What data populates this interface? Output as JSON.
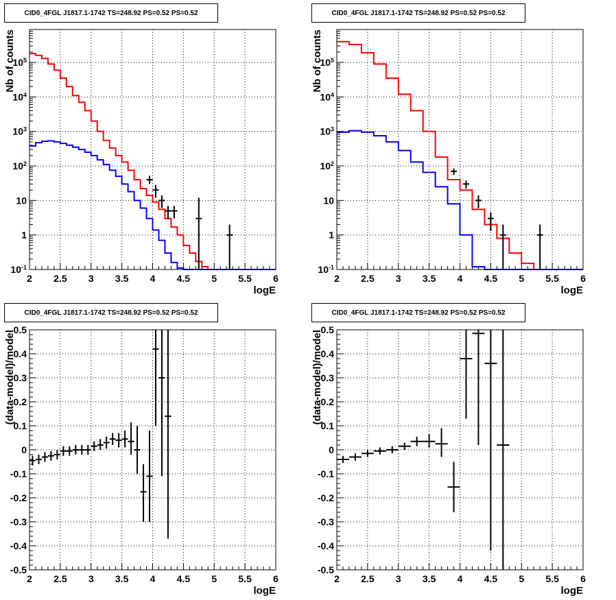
{
  "chart_data": [
    {
      "type": "step",
      "title": "CID0_4FGL J1817.1-1742 TS=248.92 PS=0.52 PS=0.52",
      "xlabel": "logE",
      "ylabel": "Nb of counts",
      "xlim": [
        2,
        6
      ],
      "ylim": [
        0.1,
        900000
      ],
      "yscale": "log",
      "grid": true,
      "xticks": [
        "2",
        "2.5",
        "3",
        "3.5",
        "4",
        "4.5",
        "5",
        "5.5",
        "6"
      ],
      "yticks": [
        "10^-1",
        "1",
        "10",
        "10^2",
        "10^3",
        "10^4",
        "10^5"
      ],
      "series": [
        {
          "color": "#ff0000",
          "bin_edges": [
            2,
            2.1,
            2.2,
            2.3,
            2.4,
            2.5,
            2.6,
            2.7,
            2.8,
            2.9,
            3.0,
            3.1,
            3.2,
            3.3,
            3.4,
            3.5,
            3.6,
            3.7,
            3.8,
            3.9,
            4.0,
            4.1,
            4.2,
            4.3,
            4.4,
            4.5,
            4.6,
            4.7,
            4.8,
            4.9,
            5.0,
            6.0
          ],
          "values": [
            180000,
            160000,
            130000,
            90000,
            60000,
            35000,
            20000,
            11000,
            7000,
            4000,
            2000,
            1000,
            550,
            330,
            200,
            130,
            75,
            40,
            22,
            14,
            9,
            5.5,
            3,
            1.7,
            1,
            0.5,
            0.3,
            0.17,
            0.12,
            0.1,
            0.1
          ]
        },
        {
          "color": "#0000ff",
          "bin_edges": [
            2,
            2.1,
            2.2,
            2.3,
            2.4,
            2.5,
            2.6,
            2.7,
            2.8,
            2.9,
            3.0,
            3.1,
            3.2,
            3.3,
            3.4,
            3.5,
            3.6,
            3.7,
            3.8,
            3.9,
            4.0,
            4.1,
            4.2,
            4.3,
            4.4,
            4.5,
            6.0
          ],
          "values": [
            380,
            470,
            520,
            530,
            500,
            450,
            400,
            350,
            300,
            250,
            200,
            150,
            110,
            75,
            50,
            30,
            18,
            10,
            6,
            3,
            1.4,
            0.7,
            0.3,
            0.16,
            0.11,
            0.1
          ]
        }
      ],
      "points": {
        "x": [
          3.95,
          4.05,
          4.15,
          4.25,
          4.35,
          4.75,
          5.25
        ],
        "y": [
          40,
          20,
          10,
          5,
          5,
          3,
          1
        ],
        "ylo": [
          30,
          12,
          6,
          3,
          3,
          0.1,
          0.1
        ],
        "yhi": [
          52,
          28,
          14,
          7,
          7,
          12,
          2
        ]
      }
    },
    {
      "type": "step",
      "title": "CID0_4FGL J1817.1-1742 TS=248.92 PS=0.52 PS=0.52",
      "xlabel": "logE",
      "ylabel": "Nb of counts",
      "xlim": [
        2,
        6
      ],
      "ylim": [
        0.1,
        900000
      ],
      "yscale": "log",
      "grid": true,
      "xticks": [
        "2",
        "2.5",
        "3",
        "3.5",
        "4",
        "4.5",
        "5",
        "5.5",
        "6"
      ],
      "yticks": [
        "10^-1",
        "1",
        "10",
        "10^2",
        "10^3",
        "10^4",
        "10^5"
      ],
      "series": [
        {
          "color": "#ff0000",
          "bin_edges": [
            2,
            2.2,
            2.4,
            2.6,
            2.8,
            3.0,
            3.2,
            3.4,
            3.6,
            3.8,
            4.0,
            4.2,
            4.4,
            4.6,
            4.8,
            5.0,
            5.2,
            5.4,
            6.0
          ],
          "values": [
            400000,
            330000,
            190000,
            90000,
            35000,
            12000,
            4000,
            1000,
            180,
            40,
            20,
            5.5,
            2,
            0.8,
            0.3,
            0.15,
            0.1,
            0.1
          ]
        },
        {
          "color": "#0000ff",
          "bin_edges": [
            2,
            2.2,
            2.4,
            2.6,
            2.8,
            3.0,
            3.2,
            3.4,
            3.6,
            3.8,
            4.0,
            4.2,
            4.4,
            4.6,
            6.0
          ],
          "values": [
            950,
            1050,
            950,
            750,
            500,
            280,
            130,
            65,
            25,
            8,
            1,
            0.12,
            0.1,
            0.1
          ]
        }
      ],
      "points": {
        "x": [
          3.9,
          4.1,
          4.3,
          4.5,
          4.7,
          5.3
        ],
        "y": [
          70,
          30,
          10,
          3,
          1,
          1
        ],
        "ylo": [
          55,
          22,
          6,
          1.3,
          0.1,
          0.1
        ],
        "yhi": [
          85,
          38,
          14,
          4.5,
          2,
          2
        ]
      }
    },
    {
      "type": "scatter",
      "title": "CID0_4FGL J1817.1-1742 TS=248.92 PS=0.52 PS=0.52",
      "xlabel": "logE",
      "ylabel": "(data-model)/model",
      "xlim": [
        2,
        6
      ],
      "ylim": [
        -0.5,
        0.5
      ],
      "grid": true,
      "xticks": [
        "2",
        "2.5",
        "3",
        "3.5",
        "4",
        "4.5",
        "5",
        "5.5",
        "6"
      ],
      "yticks": [
        "-0.5",
        "-0.4",
        "-0.3",
        "-0.2",
        "-0.1",
        "0",
        "0.1",
        "0.2",
        "0.3",
        "0.4",
        "0.5"
      ],
      "points": {
        "x": [
          2.05,
          2.15,
          2.25,
          2.35,
          2.45,
          2.55,
          2.65,
          2.75,
          2.85,
          2.95,
          3.05,
          3.15,
          3.25,
          3.35,
          3.45,
          3.55,
          3.65,
          3.75,
          3.85,
          3.95,
          4.05,
          4.15,
          4.25
        ],
        "y": [
          -0.045,
          -0.04,
          -0.03,
          -0.025,
          -0.02,
          -0.005,
          -0.005,
          0.0,
          0.0,
          0.0,
          0.015,
          0.02,
          0.03,
          0.045,
          0.04,
          0.045,
          0.035,
          0.0,
          -0.175,
          -0.11,
          0.42,
          0.3,
          0.14
        ],
        "xerr": 0.05,
        "ylo": [
          -0.065,
          -0.06,
          -0.05,
          -0.045,
          -0.04,
          -0.025,
          -0.025,
          -0.02,
          -0.02,
          -0.02,
          -0.005,
          0.0,
          0.005,
          0.02,
          0.01,
          0.01,
          -0.02,
          -0.1,
          -0.3,
          -0.3,
          0.1,
          -0.11,
          -0.37
        ],
        "yhi": [
          -0.025,
          -0.02,
          -0.01,
          -0.005,
          0.0,
          0.015,
          0.015,
          0.02,
          0.02,
          0.02,
          0.035,
          0.045,
          0.055,
          0.07,
          0.07,
          0.08,
          0.115,
          0.1,
          -0.06,
          0.08,
          0.5,
          0.5,
          0.5
        ]
      }
    },
    {
      "type": "scatter",
      "title": "CID0_4FGL J1817.1-1742 TS=248.92 PS=0.52 PS=0.52",
      "xlabel": "logE",
      "ylabel": "(data-model)/model",
      "xlim": [
        2,
        6
      ],
      "ylim": [
        -0.5,
        0.5
      ],
      "grid": true,
      "xticks": [
        "2",
        "2.5",
        "3",
        "3.5",
        "4",
        "4.5",
        "5",
        "5.5",
        "6"
      ],
      "yticks": [
        "-0.5",
        "-0.4",
        "-0.3",
        "-0.2",
        "-0.1",
        "0",
        "0.1",
        "0.2",
        "0.3",
        "0.4",
        "0.5"
      ],
      "points": {
        "x": [
          2.1,
          2.3,
          2.5,
          2.7,
          2.9,
          3.1,
          3.3,
          3.5,
          3.7,
          3.9,
          4.1,
          4.3,
          4.5,
          4.7
        ],
        "y": [
          -0.04,
          -0.03,
          -0.015,
          -0.005,
          0.0,
          0.015,
          0.035,
          0.035,
          0.025,
          -0.155,
          0.38,
          0.485,
          0.36,
          0.02
        ],
        "xerr": 0.1,
        "ylo": [
          -0.055,
          -0.045,
          -0.03,
          -0.02,
          -0.015,
          0.0,
          0.015,
          0.01,
          -0.03,
          -0.26,
          0.13,
          0.02,
          -0.42,
          -0.5
        ],
        "yhi": [
          -0.025,
          -0.015,
          0.0,
          0.01,
          0.015,
          0.03,
          0.055,
          0.065,
          0.09,
          -0.05,
          0.5,
          0.5,
          0.5,
          0.5
        ]
      }
    }
  ]
}
